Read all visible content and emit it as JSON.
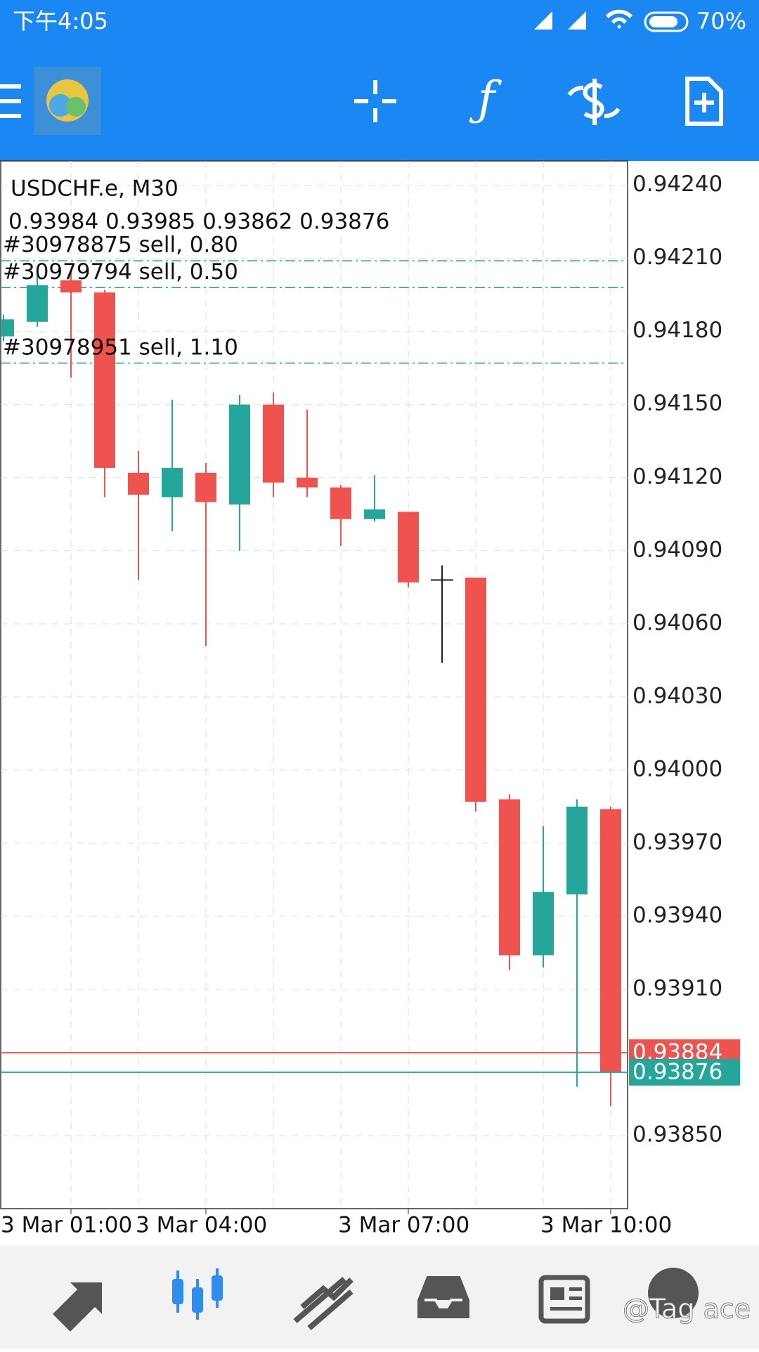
{
  "status_bar": {
    "time": "下午4:05",
    "battery": "70%"
  },
  "chart_data": {
    "type": "candlestick",
    "title": "USDCHF.e, M30",
    "ohlc_label": "0.93984 0.93985 0.93862 0.93876",
    "categories": [
      null,
      null,
      "3 Mar 01:00",
      null,
      null,
      null,
      "3 Mar 04:00",
      null,
      null,
      null,
      null,
      null,
      "3 Mar 07:00",
      null,
      null,
      null,
      null,
      null,
      "3 Mar 10:00"
    ],
    "open": [
      0.94178,
      0.94184,
      0.94201,
      0.94196,
      0.94122,
      0.94112,
      0.94122,
      0.94109,
      0.9415,
      0.9412,
      0.94116,
      0.94103,
      0.94106,
      0.94078,
      0.94079,
      0.93988,
      0.93924,
      0.93949,
      0.93984
    ],
    "high": [
      0.94187,
      0.94205,
      0.94205,
      0.94197,
      0.94131,
      0.94152,
      0.94126,
      0.94154,
      0.94155,
      0.94148,
      0.94117,
      0.94121,
      0.94106,
      0.94084,
      0.94079,
      0.9399,
      0.93977,
      0.93988,
      0.93985
    ],
    "low": [
      0.94176,
      0.94182,
      0.94161,
      0.94112,
      0.94078,
      0.94098,
      0.94051,
      0.9409,
      0.94112,
      0.94112,
      0.94092,
      0.94102,
      0.94075,
      0.94044,
      0.93983,
      0.93918,
      0.93919,
      0.9387,
      0.93862
    ],
    "close": [
      0.94185,
      0.94199,
      0.94196,
      0.94124,
      0.94113,
      0.94124,
      0.9411,
      0.9415,
      0.94118,
      0.94116,
      0.94103,
      0.94107,
      0.94077,
      0.94078,
      0.93987,
      0.93924,
      0.9395,
      0.93985,
      0.93876
    ],
    "up_color": "#26a69a",
    "down_color": "#ef5350",
    "ylim": [
      0.9382,
      0.9425
    ],
    "yticks": [
      {
        "value": 0.9424,
        "label": "0.94240"
      },
      {
        "value": 0.9421,
        "label": "0.94210"
      },
      {
        "value": 0.9418,
        "label": "0.94180"
      },
      {
        "value": 0.9415,
        "label": "0.94150"
      },
      {
        "value": 0.9412,
        "label": "0.94120"
      },
      {
        "value": 0.9409,
        "label": "0.94090"
      },
      {
        "value": 0.9406,
        "label": "0.94060"
      },
      {
        "value": 0.9403,
        "label": "0.94030"
      },
      {
        "value": 0.94,
        "label": "0.94000"
      },
      {
        "value": 0.9397,
        "label": "0.93970"
      },
      {
        "value": 0.9394,
        "label": "0.93940"
      },
      {
        "value": 0.9391,
        "label": "0.93910"
      },
      {
        "value": 0.9385,
        "label": "0.93850"
      }
    ],
    "orders": [
      {
        "label": "#30978875 sell, 0.80",
        "price": 0.94209
      },
      {
        "label": "#30979794 sell, 0.50",
        "price": 0.94198
      },
      {
        "label": "#30978951 sell, 1.10",
        "price": 0.94167
      }
    ],
    "ask": 0.93884,
    "bid": 0.93876,
    "grid": true
  },
  "watermark": "@Tag ace"
}
